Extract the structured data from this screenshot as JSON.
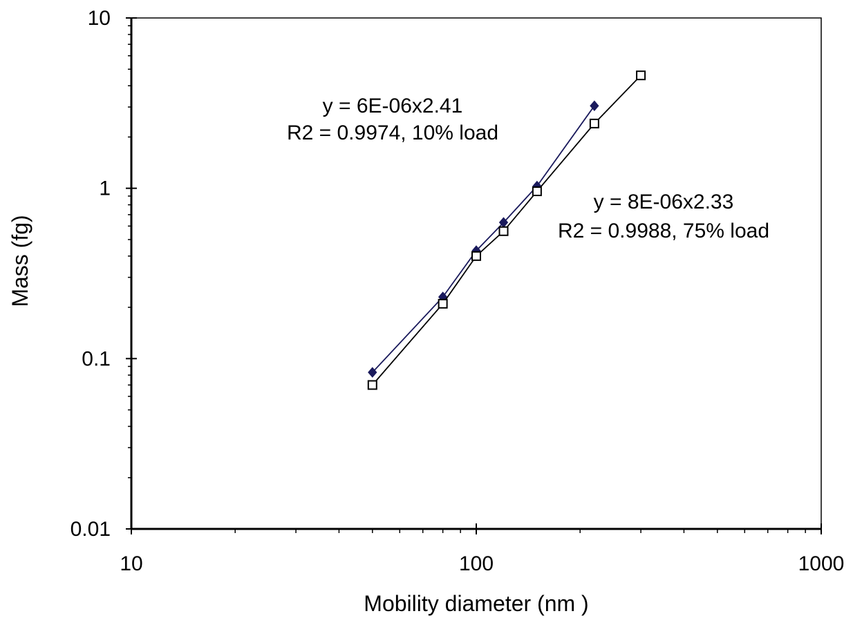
{
  "chart_data": {
    "type": "scatter",
    "title": "",
    "xlabel": "Mobility diameter (nm )",
    "ylabel": "Mass (fg)",
    "xscale": "log",
    "yscale": "log",
    "xlim": [
      10,
      1000
    ],
    "ylim": [
      0.01,
      10
    ],
    "x_tick_labels": [
      "10",
      "100",
      "1000"
    ],
    "y_tick_labels": [
      "0.01",
      "0.1",
      "1",
      "10"
    ],
    "grid": false,
    "series": [
      {
        "marker": "filled-diamond",
        "color": "#1a1a5c",
        "x": [
          50,
          80,
          100,
          120,
          150,
          220
        ],
        "y": [
          0.083,
          0.23,
          0.43,
          0.63,
          1.03,
          3.05
        ]
      },
      {
        "marker": "open-square",
        "color": "#000000",
        "x": [
          50,
          80,
          100,
          120,
          150,
          220,
          300
        ],
        "y": [
          0.07,
          0.21,
          0.4,
          0.56,
          0.96,
          2.4,
          4.6
        ]
      }
    ],
    "annotations": [
      {
        "lines": [
          "y = 6E-06x2.41",
          "R2 = 0.9974, 10% load"
        ]
      },
      {
        "lines": [
          "y = 8E-06x2.33",
          "R2 = 0.9988, 75% load"
        ]
      }
    ]
  }
}
